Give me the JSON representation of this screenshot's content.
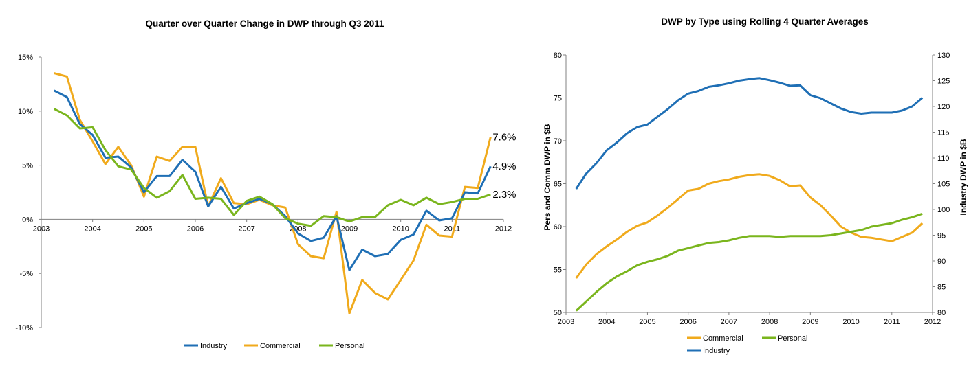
{
  "colors": {
    "industry": "#1f6fb5",
    "commercial": "#f0aa1c",
    "personal": "#7ab51d",
    "axis": "#808080"
  },
  "chart_data": [
    {
      "type": "line",
      "title": "Quarter over Quarter Change in DWP through Q3 2011",
      "xlabel": "",
      "ylabel": "",
      "xlim": [
        2003,
        2012
      ],
      "ylim": [
        -10,
        15
      ],
      "x_ticks": [
        "2003",
        "2004",
        "2005",
        "2006",
        "2007",
        "2008",
        "2009",
        "2010",
        "2011",
        "2012"
      ],
      "y_ticks": [
        "15%",
        "10%",
        "5%",
        "0%",
        "-5%",
        "-10%"
      ],
      "y_tick_values": [
        15,
        10,
        5,
        0,
        -5,
        -10
      ],
      "grid": false,
      "legend": "bottom",
      "x": [
        2003.25,
        2003.5,
        2003.75,
        2004.0,
        2004.25,
        2004.5,
        2004.75,
        2005.0,
        2005.25,
        2005.5,
        2005.75,
        2006.0,
        2006.25,
        2006.5,
        2006.75,
        2007.0,
        2007.25,
        2007.5,
        2007.75,
        2008.0,
        2008.25,
        2008.5,
        2008.75,
        2009.0,
        2009.25,
        2009.5,
        2009.75,
        2010.0,
        2010.25,
        2010.5,
        2010.75,
        2011.0,
        2011.25,
        2011.5,
        2011.75
      ],
      "series": [
        {
          "name": "Industry",
          "key": "industry",
          "end_label": "4.9%",
          "values": [
            11.9,
            11.3,
            8.8,
            7.8,
            5.7,
            5.8,
            4.8,
            2.5,
            4.0,
            4.0,
            5.5,
            4.4,
            1.2,
            3.0,
            1.0,
            1.5,
            1.9,
            1.4,
            0.3,
            -1.3,
            -2.0,
            -1.7,
            0.3,
            -4.7,
            -2.8,
            -3.4,
            -3.2,
            -1.9,
            -1.4,
            0.8,
            -0.1,
            0.1,
            2.5,
            2.4,
            4.9
          ]
        },
        {
          "name": "Commercial",
          "key": "commercial",
          "end_label": "7.6%",
          "values": [
            13.5,
            13.2,
            9.2,
            7.2,
            5.1,
            6.7,
            5.0,
            2.1,
            5.8,
            5.4,
            6.7,
            6.7,
            1.2,
            3.8,
            1.5,
            1.4,
            1.8,
            1.3,
            1.1,
            -2.3,
            -3.4,
            -3.6,
            0.7,
            -8.7,
            -5.6,
            -6.8,
            -7.4,
            -5.6,
            -3.8,
            -0.5,
            -1.5,
            -1.6,
            3.0,
            2.9,
            7.6
          ]
        },
        {
          "name": "Personal",
          "key": "personal",
          "end_label": "2.3%",
          "values": [
            10.2,
            9.6,
            8.4,
            8.5,
            6.4,
            4.9,
            4.6,
            2.9,
            2.0,
            2.6,
            4.1,
            1.9,
            2.0,
            1.9,
            0.4,
            1.7,
            2.1,
            1.4,
            0.1,
            -0.4,
            -0.6,
            0.3,
            0.2,
            -0.2,
            0.2,
            0.2,
            1.3,
            1.8,
            1.3,
            2.0,
            1.4,
            1.6,
            1.9,
            1.9,
            2.3
          ]
        }
      ]
    },
    {
      "type": "line",
      "title": "DWP by Type using Rolling 4 Quarter Averages",
      "xlabel": "",
      "ylabel": "Pers and Comm DWP in $B",
      "y2label": "Industry DWP in $B",
      "xlim": [
        2003,
        2012
      ],
      "ylim": [
        50,
        80
      ],
      "y2lim": [
        80,
        130
      ],
      "x_ticks": [
        "2003",
        "2004",
        "2005",
        "2006",
        "2007",
        "2008",
        "2009",
        "2010",
        "2011",
        "2012"
      ],
      "y_ticks": [
        "80",
        "75",
        "70",
        "65",
        "60",
        "55",
        "50"
      ],
      "y_tick_values": [
        80,
        75,
        70,
        65,
        60,
        55,
        50
      ],
      "y2_ticks": [
        "130",
        "125",
        "120",
        "115",
        "110",
        "105",
        "100",
        "95",
        "90",
        "85",
        "80"
      ],
      "y2_tick_values": [
        130,
        125,
        120,
        115,
        110,
        105,
        100,
        95,
        90,
        85,
        80
      ],
      "grid": false,
      "legend": "bottom",
      "x": [
        2003.25,
        2003.5,
        2003.75,
        2004.0,
        2004.25,
        2004.5,
        2004.75,
        2005.0,
        2005.25,
        2005.5,
        2005.75,
        2006.0,
        2006.25,
        2006.5,
        2006.75,
        2007.0,
        2007.25,
        2007.5,
        2007.75,
        2008.0,
        2008.25,
        2008.5,
        2008.75,
        2009.0,
        2009.25,
        2009.5,
        2009.75,
        2010.0,
        2010.25,
        2010.5,
        2010.75,
        2011.0,
        2011.25,
        2011.5,
        2011.75
      ],
      "series": [
        {
          "name": "Commercial",
          "key": "commercial",
          "axis": "left",
          "values": [
            54.0,
            55.6,
            56.8,
            57.7,
            58.5,
            59.4,
            60.1,
            60.5,
            61.3,
            62.2,
            63.2,
            64.2,
            64.4,
            65.0,
            65.3,
            65.5,
            65.8,
            66.0,
            66.1,
            65.9,
            65.4,
            64.7,
            64.8,
            63.4,
            62.5,
            61.3,
            60.0,
            59.3,
            58.8,
            58.7,
            58.5,
            58.3,
            58.8,
            59.3,
            60.4
          ]
        },
        {
          "name": "Personal",
          "key": "personal",
          "axis": "left",
          "values": [
            50.2,
            51.3,
            52.4,
            53.4,
            54.2,
            54.8,
            55.5,
            55.9,
            56.2,
            56.6,
            57.2,
            57.5,
            57.8,
            58.1,
            58.2,
            58.4,
            58.7,
            58.9,
            58.9,
            58.9,
            58.8,
            58.9,
            58.9,
            58.9,
            58.9,
            59.0,
            59.2,
            59.4,
            59.6,
            60.0,
            60.2,
            60.4,
            60.8,
            61.1,
            61.5
          ]
        },
        {
          "name": "Industry",
          "key": "industry",
          "axis": "right",
          "values": [
            104.0,
            107.0,
            109.0,
            111.5,
            113.0,
            114.8,
            116.0,
            116.5,
            118.0,
            119.5,
            121.2,
            122.5,
            123.0,
            123.8,
            124.1,
            124.5,
            125.0,
            125.3,
            125.5,
            125.1,
            124.6,
            124.0,
            124.1,
            122.2,
            121.6,
            120.6,
            119.6,
            118.9,
            118.6,
            118.8,
            118.8,
            118.8,
            119.2,
            120.0,
            121.7
          ]
        }
      ]
    }
  ]
}
